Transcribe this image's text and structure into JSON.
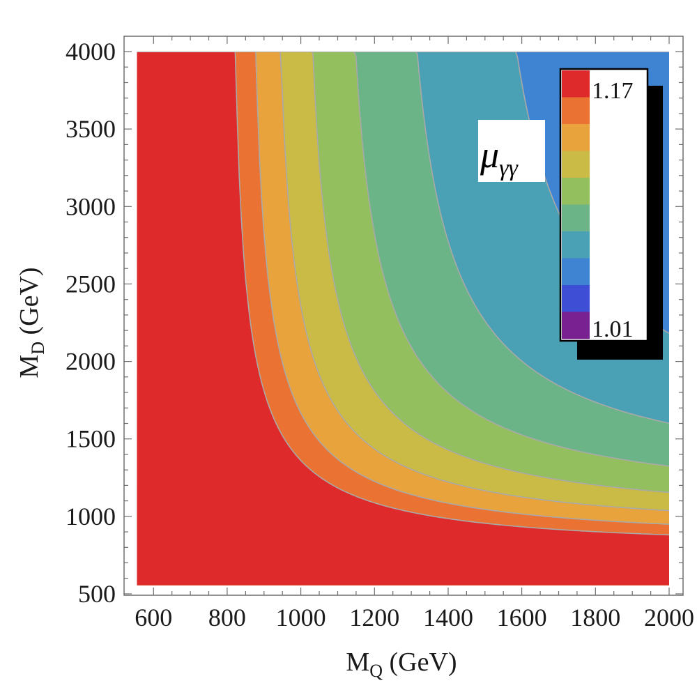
{
  "chart_data": {
    "type": "contour",
    "xlabel": {
      "base": "M",
      "sub": "Q",
      "unit": " (GeV)"
    },
    "ylabel": {
      "base": "M",
      "sub": "D",
      "unit": " (GeV)"
    },
    "xlim": [
      520,
      2000
    ],
    "ylim": [
      500,
      4000
    ],
    "data_x_range": [
      555,
      2000
    ],
    "data_y_range": [
      555,
      4000
    ],
    "x_ticks": [
      600,
      800,
      1000,
      1200,
      1400,
      1600,
      1800,
      2000
    ],
    "y_ticks": [
      500,
      1000,
      1500,
      2000,
      2500,
      3000,
      3500,
      4000
    ],
    "contour_model": "mu_gg - 1 = k * (1/M_Q^2 + 1/M_D^2)",
    "k_over_mu_units": 100000,
    "levels": [
      1.01,
      1.028,
      1.046,
      1.064,
      1.082,
      1.1,
      1.118,
      1.136,
      1.154,
      1.17
    ],
    "bands": [
      {
        "range": [
          1.0,
          1.01
        ],
        "color": "#7a2191"
      },
      {
        "range": [
          1.01,
          1.028
        ],
        "color": "#3e4fd6"
      },
      {
        "range": [
          1.028,
          1.046
        ],
        "color": "#3f84d2"
      },
      {
        "range": [
          1.046,
          1.064
        ],
        "color": "#4aa0b4"
      },
      {
        "range": [
          1.064,
          1.082
        ],
        "color": "#6bb487"
      },
      {
        "range": [
          1.082,
          1.1
        ],
        "color": "#94bf5e"
      },
      {
        "range": [
          1.1,
          1.118
        ],
        "color": "#c9bb45"
      },
      {
        "range": [
          1.118,
          1.136
        ],
        "color": "#e8a33c"
      },
      {
        "range": [
          1.136,
          1.154
        ],
        "color": "#ea7333"
      },
      {
        "range": [
          1.154,
          1.2
        ],
        "color": "#de2a2a"
      }
    ],
    "legend": {
      "title": "μ",
      "title_sub": "γγ",
      "max_label": "1.17",
      "min_label": "1.01",
      "swatches": [
        "#de2a2a",
        "#ea7333",
        "#e8a33c",
        "#c9bb45",
        "#94bf5e",
        "#6bb487",
        "#4aa0b4",
        "#3f84d2",
        "#3e4fd6",
        "#7a2191"
      ],
      "placement": "top-right"
    },
    "colors": {
      "frame": "#6e6e6e",
      "contour_line": "#a9a9a9",
      "legend_shadow": "#000000",
      "background": "#ffffff"
    }
  }
}
